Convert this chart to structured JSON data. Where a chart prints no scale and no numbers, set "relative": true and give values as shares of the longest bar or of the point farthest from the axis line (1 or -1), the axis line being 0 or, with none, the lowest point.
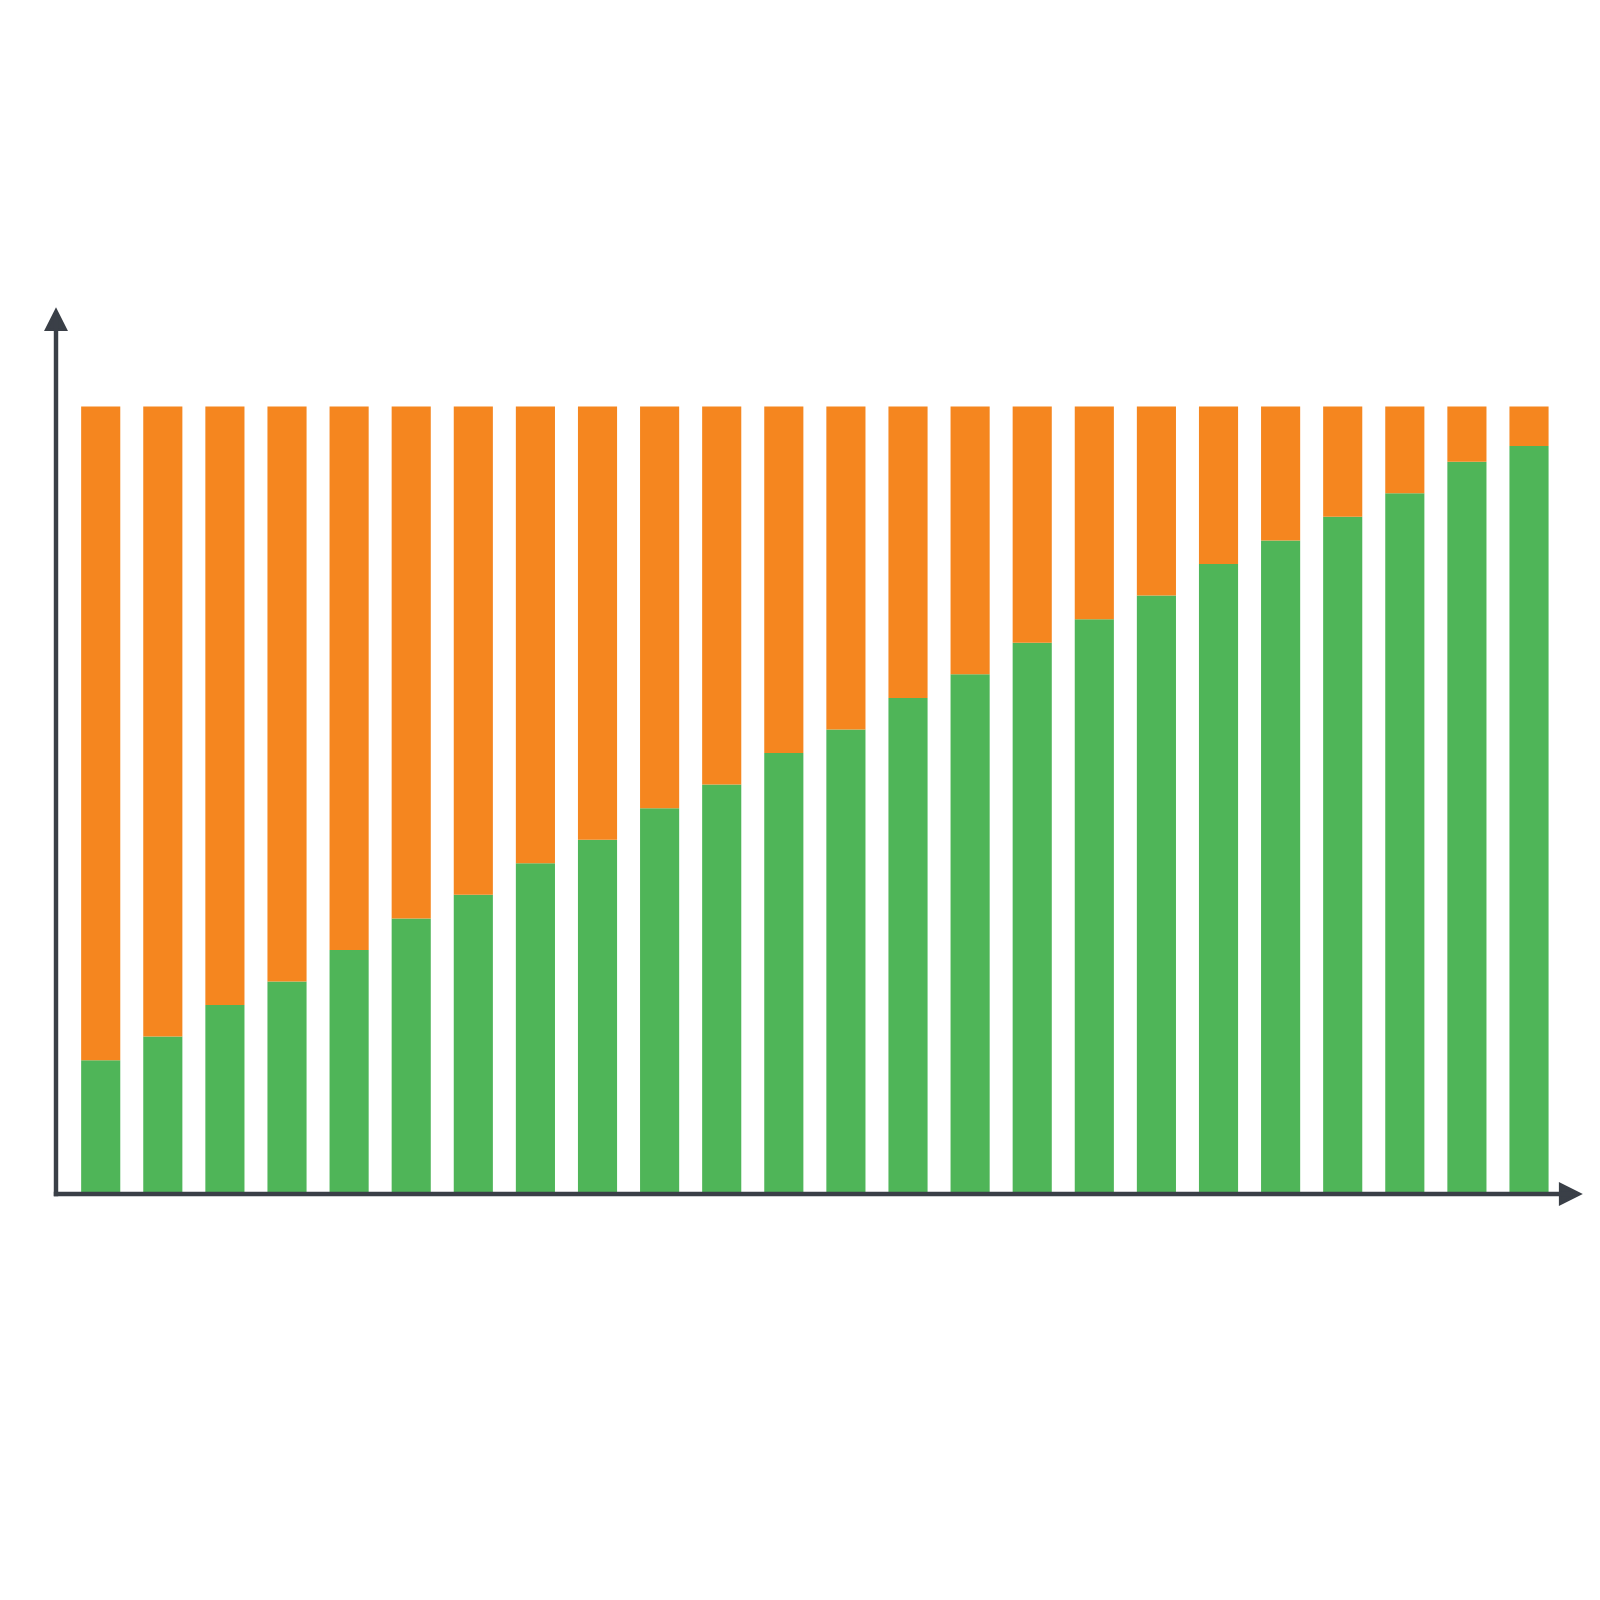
{
  "chart_data": {
    "type": "bar",
    "stacked": true,
    "relative": true,
    "categories": [
      null,
      null,
      null,
      null,
      null,
      null,
      null,
      null,
      null,
      null,
      null,
      null,
      null,
      null,
      null,
      null,
      null,
      null,
      null,
      null,
      null,
      null,
      null,
      null
    ],
    "series": [
      {
        "color": "#4fb558",
        "values": [
          0.17,
          0.2,
          0.24,
          0.27,
          0.31,
          0.35,
          0.38,
          0.42,
          0.45,
          0.49,
          0.52,
          0.56,
          0.59,
          0.63,
          0.66,
          0.7,
          0.73,
          0.76,
          0.8,
          0.83,
          0.86,
          0.89,
          0.93,
          0.95
        ]
      },
      {
        "color": "#f5861f",
        "values": [
          0.83,
          0.8,
          0.76,
          0.73,
          0.69,
          0.65,
          0.62,
          0.58,
          0.55,
          0.51,
          0.48,
          0.44,
          0.41,
          0.37,
          0.34,
          0.3,
          0.27,
          0.24,
          0.2,
          0.17,
          0.14,
          0.11,
          0.07,
          0.05
        ]
      }
    ]
  }
}
